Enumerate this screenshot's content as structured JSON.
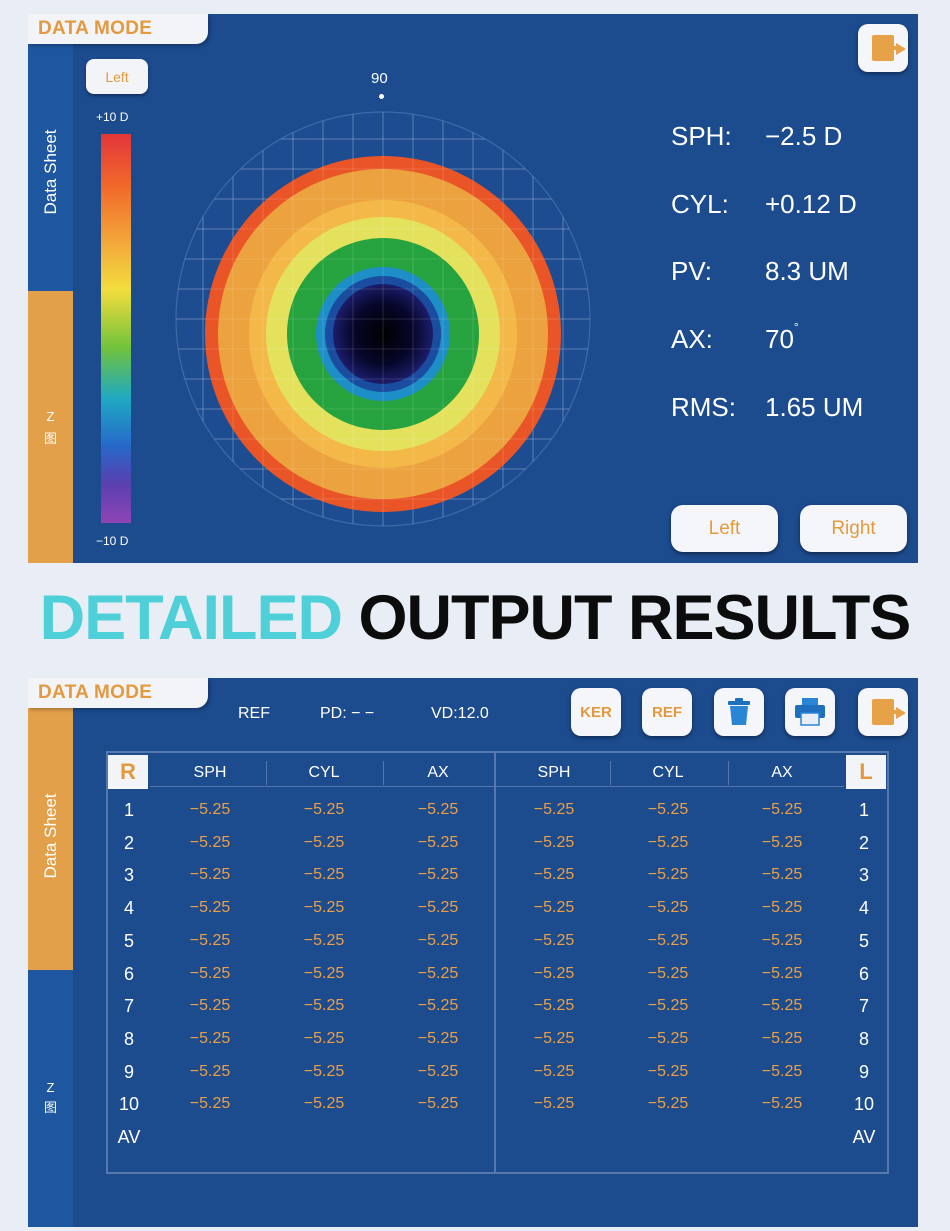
{
  "top_screen": {
    "mode_title": "DATA MODE",
    "sidebar": {
      "data_sheet": "Data Sheet",
      "z_label": "Z",
      "z_sub": "图"
    },
    "eye_selector": "Left",
    "scale_top": "+10 D",
    "scale_bottom": "−10 D",
    "axis_marker": "90",
    "exit_icon": "exit-icon",
    "readings": [
      {
        "label": "SPH:",
        "value": "−2.5 D"
      },
      {
        "label": "CYL:",
        "value": "+0.12 D"
      },
      {
        "label": "PV:",
        "value": "8.3 UM"
      },
      {
        "label": "AX:",
        "value": "70",
        "unit": "°"
      },
      {
        "label": "RMS:",
        "value": "1.65 UM"
      }
    ],
    "left_button": "Left",
    "right_button": "Right"
  },
  "headline": {
    "part1": "DETAILED",
    "part2": "OUTPUT RESULTS"
  },
  "bottom_screen": {
    "mode_title": "DATA MODE",
    "sidebar": {
      "data_sheet": "Data Sheet",
      "z_label": "Z",
      "z_sub": "图"
    },
    "info": {
      "ref": "REF",
      "pd": "PD: − −",
      "vd": "VD:12.0"
    },
    "toolbar": {
      "ker": "KER",
      "ref": "REF",
      "delete_icon": "trash-icon",
      "print_icon": "printer-icon",
      "exit_icon": "exit-icon"
    },
    "right_eye_label": "R",
    "left_eye_label": "L",
    "columns": [
      "SPH",
      "CYL",
      "AX"
    ],
    "row_labels": [
      "1",
      "2",
      "3",
      "4",
      "5",
      "6",
      "7",
      "8",
      "9",
      "10",
      "AV"
    ],
    "right_values": [
      [
        "−5.25",
        "−5.25",
        "−5.25"
      ],
      [
        "−5.25",
        "−5.25",
        "−5.25"
      ],
      [
        "−5.25",
        "−5.25",
        "−5.25"
      ],
      [
        "−5.25",
        "−5.25",
        "−5.25"
      ],
      [
        "−5.25",
        "−5.25",
        "−5.25"
      ],
      [
        "−5.25",
        "−5.25",
        "−5.25"
      ],
      [
        "−5.25",
        "−5.25",
        "−5.25"
      ],
      [
        "−5.25",
        "−5.25",
        "−5.25"
      ],
      [
        "−5.25",
        "−5.25",
        "−5.25"
      ],
      [
        "−5.25",
        "−5.25",
        "−5.25"
      ]
    ],
    "left_values": [
      [
        "−5.25",
        "−5.25",
        "−5.25"
      ],
      [
        "−5.25",
        "−5.25",
        "−5.25"
      ],
      [
        "−5.25",
        "−5.25",
        "−5.25"
      ],
      [
        "−5.25",
        "−5.25",
        "−5.25"
      ],
      [
        "−5.25",
        "−5.25",
        "−5.25"
      ],
      [
        "−5.25",
        "−5.25",
        "−5.25"
      ],
      [
        "−5.25",
        "−5.25",
        "−5.25"
      ],
      [
        "−5.25",
        "−5.25",
        "−5.25"
      ],
      [
        "−5.25",
        "−5.25",
        "−5.25"
      ],
      [
        "−5.25",
        "−5.25",
        "−5.25"
      ]
    ]
  }
}
